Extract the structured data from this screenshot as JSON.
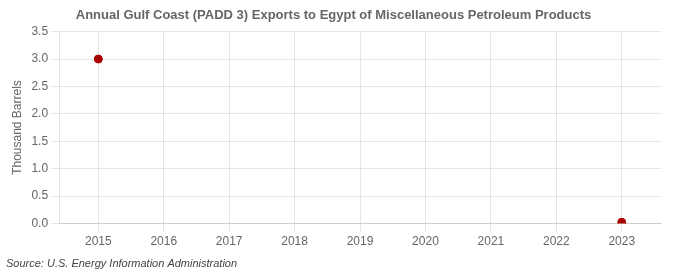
{
  "chart_data": {
    "type": "scatter",
    "title": "Annual Gulf Coast (PADD 3) Exports to Egypt of Miscellaneous Petroleum Products",
    "y_label": "Thousand Barrels",
    "annotations": [
      "Source: U.S. Energy Information Administration"
    ],
    "x": [
      2015,
      2023
    ],
    "values": [
      3.0,
      0.02
    ],
    "color": "#aa0000",
    "marker": "circle",
    "xlim": [
      2014.4,
      2023.6
    ],
    "xticks": [
      2015,
      2016,
      2017,
      2018,
      2019,
      2020,
      2021,
      2022,
      2023
    ],
    "ylim": [
      0.0,
      3.5
    ],
    "yticks": [
      {
        "value": 0.0,
        "label": "0.0"
      },
      0.5,
      {
        "value": 1.0,
        "label": "1.0"
      },
      1.5,
      {
        "value": 2.0,
        "label": "2.0"
      },
      2.5,
      {
        "value": 3.0,
        "label": "3.0"
      },
      3.5
    ],
    "grid": true
  }
}
